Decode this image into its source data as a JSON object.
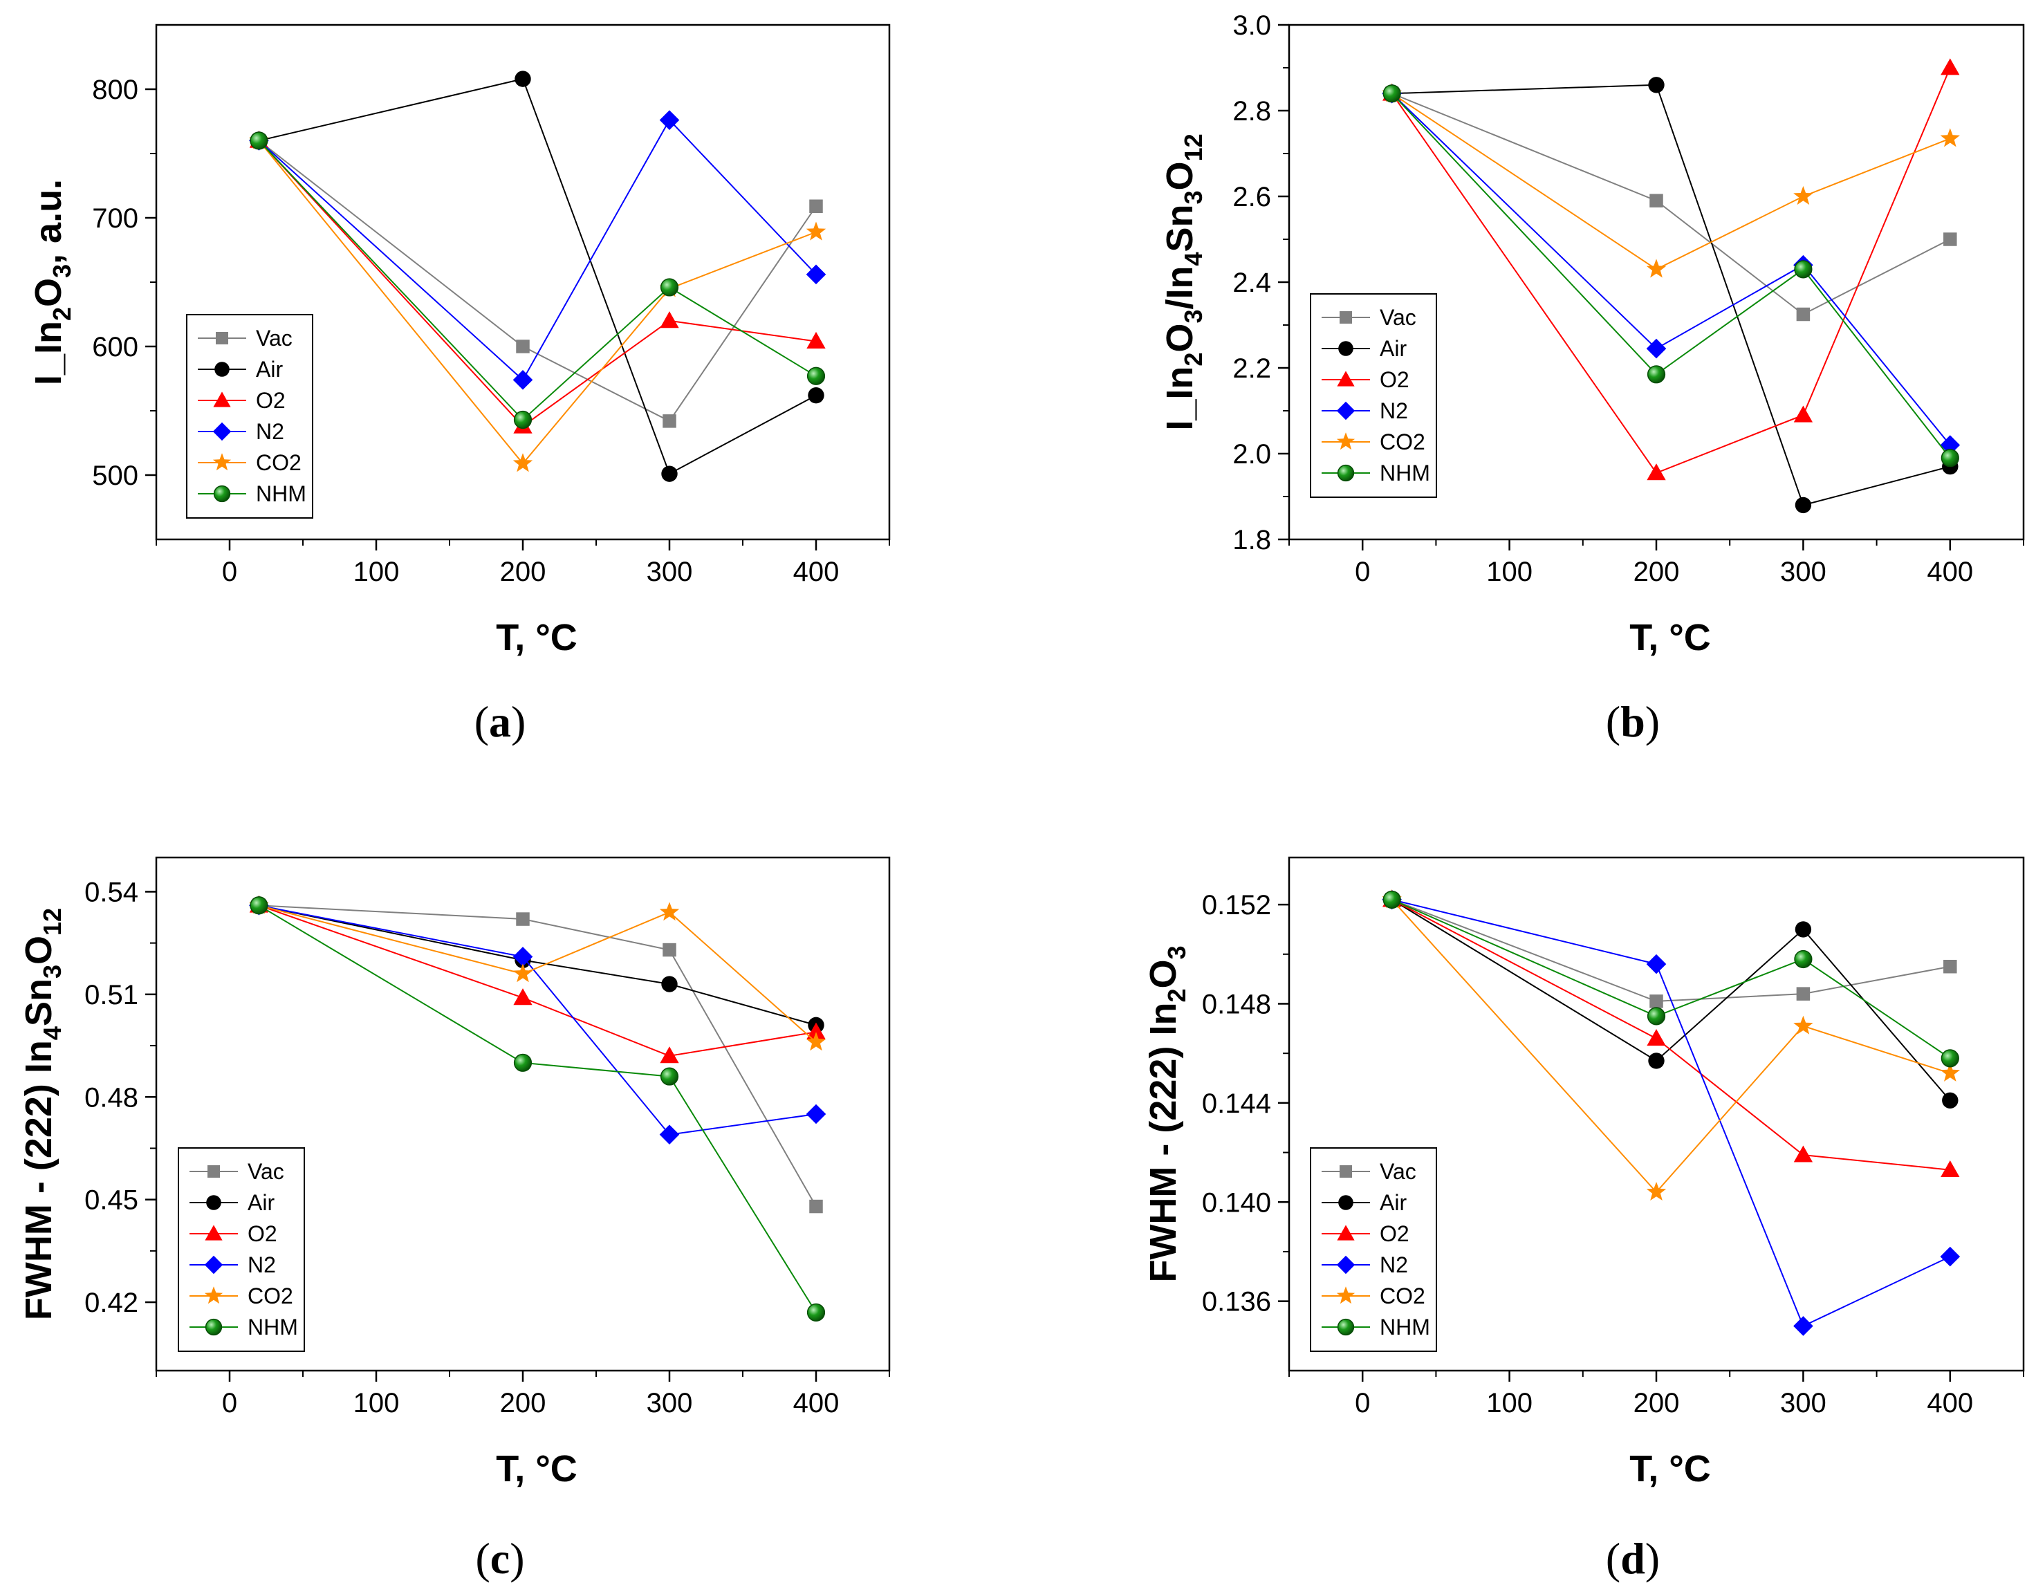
{
  "series_styles": [
    {
      "name": "Vac",
      "color": "#808080",
      "marker": "square"
    },
    {
      "name": "Air",
      "color": "#000000",
      "marker": "circle"
    },
    {
      "name": "O2",
      "color": "#ff0000",
      "marker": "triangle"
    },
    {
      "name": "N2",
      "color": "#0000ff",
      "marker": "diamond"
    },
    {
      "name": "CO2",
      "color": "#ff8c00",
      "marker": "star"
    },
    {
      "name": "NHM",
      "color": "#0a8a0a",
      "marker": "sphere"
    }
  ],
  "chart_data": [
    {
      "panel": "a",
      "caption_open": "(",
      "caption_letter": "a",
      "caption_close": ")",
      "type": "line",
      "xlabel": "T, °C",
      "ylabel": [
        {
          "text": "I_In",
          "sub": false
        },
        {
          "text": "2",
          "sub": true
        },
        {
          "text": "O",
          "sub": false
        },
        {
          "text": "3",
          "sub": true
        },
        {
          "text": ", a.u.",
          "sub": false
        }
      ],
      "xlim": [
        -50,
        450
      ],
      "ylim": [
        450,
        850
      ],
      "xticks": [
        0,
        100,
        200,
        300,
        400
      ],
      "yticks": [
        500,
        600,
        700,
        800
      ],
      "ytick_labels": [
        "500",
        "600",
        "700",
        "800"
      ],
      "x": [
        20,
        200,
        300,
        400
      ],
      "series": [
        {
          "name": "Vac",
          "values": [
            760,
            600,
            542,
            709
          ]
        },
        {
          "name": "Air",
          "values": [
            760,
            808,
            501,
            562
          ]
        },
        {
          "name": "O2",
          "values": [
            760,
            538,
            620,
            604
          ]
        },
        {
          "name": "N2",
          "values": [
            760,
            574,
            776,
            656
          ]
        },
        {
          "name": "CO2",
          "values": [
            760,
            509,
            645,
            689
          ]
        },
        {
          "name": "NHM",
          "values": [
            760,
            543,
            646,
            577
          ]
        }
      ]
    },
    {
      "panel": "b",
      "caption_open": "(",
      "caption_letter": "b",
      "caption_close": ")",
      "type": "line",
      "xlabel": "T, °C",
      "ylabel": [
        {
          "text": "I_In",
          "sub": false
        },
        {
          "text": "2",
          "sub": true
        },
        {
          "text": "O",
          "sub": false
        },
        {
          "text": "3",
          "sub": true
        },
        {
          "text": "/In",
          "sub": false
        },
        {
          "text": "4",
          "sub": true
        },
        {
          "text": "Sn",
          "sub": false
        },
        {
          "text": "3",
          "sub": true
        },
        {
          "text": "O",
          "sub": false
        },
        {
          "text": "12",
          "sub": true
        }
      ],
      "xlim": [
        -50,
        450
      ],
      "ylim": [
        1.8,
        3.0
      ],
      "xticks": [
        0,
        100,
        200,
        300,
        400
      ],
      "yticks": [
        1.8,
        2.0,
        2.2,
        2.4,
        2.6,
        2.8,
        3.0
      ],
      "ytick_labels": [
        "1.8",
        "2.0",
        "2.2",
        "2.4",
        "2.6",
        "2.8",
        "3.0"
      ],
      "x": [
        20,
        200,
        300,
        400
      ],
      "series": [
        {
          "name": "Vac",
          "values": [
            2.84,
            2.59,
            2.325,
            2.5
          ]
        },
        {
          "name": "Air",
          "values": [
            2.84,
            2.86,
            1.88,
            1.97
          ]
        },
        {
          "name": "O2",
          "values": [
            2.84,
            1.955,
            2.09,
            2.9
          ]
        },
        {
          "name": "N2",
          "values": [
            2.84,
            2.245,
            2.44,
            2.02
          ]
        },
        {
          "name": "CO2",
          "values": [
            2.84,
            2.43,
            2.6,
            2.735
          ]
        },
        {
          "name": "NHM",
          "values": [
            2.84,
            2.185,
            2.43,
            1.99
          ]
        }
      ]
    },
    {
      "panel": "c",
      "caption_open": "(",
      "caption_letter": "c",
      "caption_close": ")",
      "type": "line",
      "xlabel": "T, °C",
      "ylabel": [
        {
          "text": "FWHM - (222) In",
          "sub": false
        },
        {
          "text": "4",
          "sub": true
        },
        {
          "text": "Sn",
          "sub": false
        },
        {
          "text": "3",
          "sub": true
        },
        {
          "text": "O",
          "sub": false
        },
        {
          "text": "12",
          "sub": true
        }
      ],
      "xlim": [
        -50,
        450
      ],
      "ylim": [
        0.4,
        0.55
      ],
      "xticks": [
        0,
        100,
        200,
        300,
        400
      ],
      "yticks": [
        0.42,
        0.45,
        0.48,
        0.51,
        0.54
      ],
      "ytick_labels": [
        "0.42",
        "0.45",
        "0.48",
        "0.51",
        "0.54"
      ],
      "x": [
        20,
        200,
        300,
        400
      ],
      "series": [
        {
          "name": "Vac",
          "values": [
            0.536,
            0.532,
            0.523,
            0.448
          ]
        },
        {
          "name": "Air",
          "values": [
            0.536,
            0.52,
            0.513,
            0.501
          ]
        },
        {
          "name": "O2",
          "values": [
            0.536,
            0.509,
            0.492,
            0.499
          ]
        },
        {
          "name": "N2",
          "values": [
            0.536,
            0.521,
            0.469,
            0.475
          ]
        },
        {
          "name": "CO2",
          "values": [
            0.536,
            0.516,
            0.534,
            0.496
          ]
        },
        {
          "name": "NHM",
          "values": [
            0.536,
            0.49,
            0.486,
            0.417
          ]
        }
      ]
    },
    {
      "panel": "d",
      "caption_open": "(",
      "caption_letter": "d",
      "caption_close": ")",
      "type": "line",
      "xlabel": "T, °C",
      "ylabel": [
        {
          "text": "FWHM - (222) In",
          "sub": false
        },
        {
          "text": "2",
          "sub": true
        },
        {
          "text": "O",
          "sub": false
        },
        {
          "text": "3",
          "sub": true
        }
      ],
      "xlim": [
        -50,
        450
      ],
      "ylim": [
        0.1332,
        0.1539
      ],
      "xticks": [
        0,
        100,
        200,
        300,
        400
      ],
      "yticks": [
        0.136,
        0.14,
        0.144,
        0.148,
        0.152
      ],
      "ytick_labels": [
        "0.136",
        "0.140",
        "0.144",
        "0.148",
        "0.152"
      ],
      "x": [
        20,
        200,
        300,
        400
      ],
      "series": [
        {
          "name": "Vac",
          "values": [
            0.1522,
            0.1481,
            0.1484,
            0.1495
          ]
        },
        {
          "name": "Air",
          "values": [
            0.1522,
            0.1457,
            0.151,
            0.1441
          ]
        },
        {
          "name": "O2",
          "values": [
            0.1522,
            0.1466,
            0.1419,
            0.1413
          ]
        },
        {
          "name": "N2",
          "values": [
            0.1522,
            0.1496,
            0.135,
            0.1378
          ]
        },
        {
          "name": "CO2",
          "values": [
            0.1522,
            0.1404,
            0.1471,
            0.1452
          ]
        },
        {
          "name": "NHM",
          "values": [
            0.1522,
            0.1475,
            0.1498,
            0.1458
          ]
        }
      ]
    }
  ]
}
